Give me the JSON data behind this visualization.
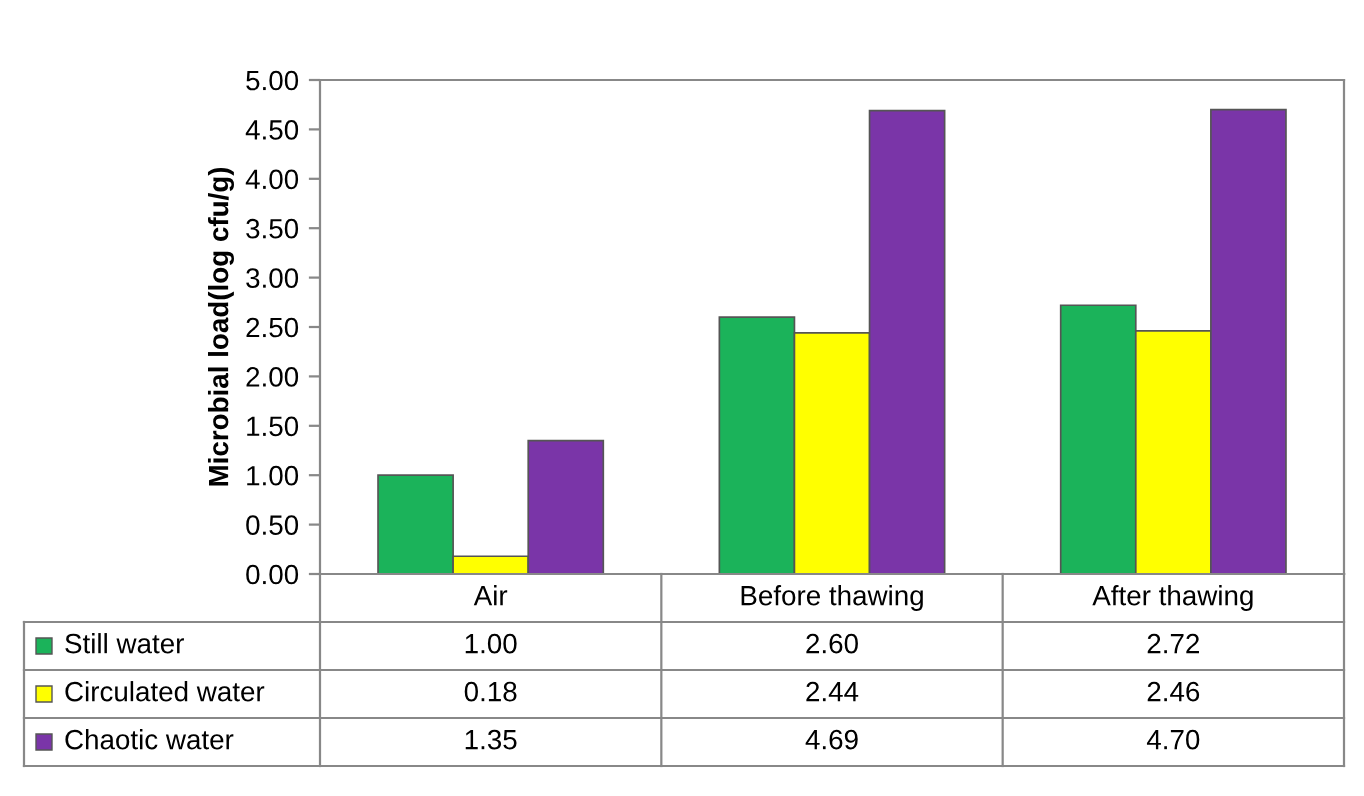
{
  "chart_data": {
    "type": "bar",
    "ylabel": "Microbial load(log cfu/g)",
    "categories": [
      "Air",
      "Before thawing",
      "After thawing"
    ],
    "series": [
      {
        "name": "Still water",
        "color": "#1bb35a",
        "values": [
          1.0,
          2.6,
          2.72
        ],
        "value_labels": [
          "1.00",
          "2.60",
          "2.72"
        ]
      },
      {
        "name": "Circulated water",
        "color": "#ffff00",
        "values": [
          0.18,
          2.44,
          2.46
        ],
        "value_labels": [
          "0.18",
          "2.44",
          "2.46"
        ]
      },
      {
        "name": "Chaotic water",
        "color": "#7a35a8",
        "values": [
          1.35,
          4.69,
          4.7
        ],
        "value_labels": [
          "1.35",
          "4.69",
          "4.70"
        ]
      }
    ],
    "ylim": [
      0,
      5
    ],
    "yticks": [
      {
        "value": 0,
        "label": "0.00"
      },
      {
        "value": 0.5,
        "label": "0.50"
      },
      {
        "value": 1,
        "label": "1.00"
      },
      {
        "value": 1.5,
        "label": "1.50"
      },
      {
        "value": 2,
        "label": "2.00"
      },
      {
        "value": 2.5,
        "label": "2.50"
      },
      {
        "value": 3,
        "label": "3.00"
      },
      {
        "value": 3.5,
        "label": "3.50"
      },
      {
        "value": 4,
        "label": "4.00"
      },
      {
        "value": 4.5,
        "label": "4.50"
      },
      {
        "value": 5,
        "label": "5.00"
      }
    ],
    "grid": false,
    "legend": "bottom"
  }
}
